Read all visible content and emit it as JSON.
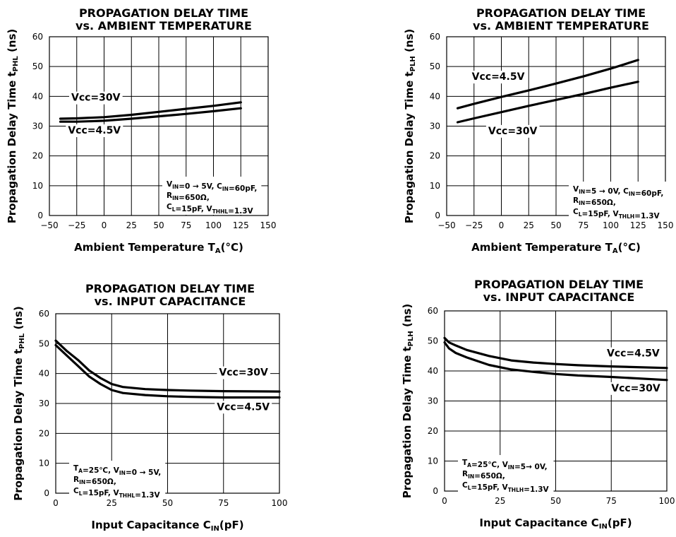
{
  "charts": [
    {
      "type": "line",
      "title": "PROPAGATION DELAY TIME",
      "subtitle": "vs. AMBIENT TEMPERATURE",
      "ylabel": {
        "main": "Propagation Delay Time t",
        "sub": "PHL",
        "unit": " (ns)"
      },
      "xlabel": {
        "main": "Ambient Temperature T",
        "sub": "A",
        "unit": "(°C)"
      },
      "xlim": [
        -50,
        150
      ],
      "ylim": [
        0,
        60
      ],
      "xticks": [
        "−50",
        "−25",
        "0",
        "25",
        "50",
        "75",
        "100",
        "125",
        "150"
      ],
      "yticks": [
        "0",
        "10",
        "20",
        "30",
        "40",
        "50",
        "60"
      ],
      "grid": true,
      "series": [
        {
          "name": "Vcc=30V",
          "x": [
            -40,
            -25,
            0,
            25,
            50,
            75,
            100,
            125
          ],
          "y": [
            32.5,
            32.6,
            33.0,
            33.8,
            34.8,
            35.8,
            36.8,
            38.0
          ]
        },
        {
          "name": "Vcc=4.5V",
          "x": [
            -40,
            -25,
            0,
            25,
            50,
            75,
            100,
            125
          ],
          "y": [
            31.5,
            31.5,
            31.8,
            32.5,
            33.3,
            34.1,
            35.0,
            36.0
          ]
        }
      ],
      "labels": [
        {
          "text": "Vcc=30V",
          "x": -30,
          "y": 38.5
        },
        {
          "text": "Vcc=4.5V",
          "x": -33,
          "y": 27.5
        }
      ],
      "conditions": [
        [
          {
            "t": "V"
          },
          {
            "t": "IN",
            "s": true
          },
          {
            "t": "=0 → 5V, C"
          },
          {
            "t": "IN",
            "s": true
          },
          {
            "t": "=60pF,"
          }
        ],
        [
          {
            "t": "R"
          },
          {
            "t": "IN",
            "s": true
          },
          {
            "t": "=650Ω,"
          }
        ],
        [
          {
            "t": "C"
          },
          {
            "t": "L",
            "s": true
          },
          {
            "t": "=15pF, V"
          },
          {
            "t": "THHL",
            "s": true
          },
          {
            "t": "=1.3V"
          }
        ]
      ]
    },
    {
      "type": "line",
      "title": "PROPAGATION DELAY TIME",
      "subtitle": "vs. AMBIENT TEMPERATURE",
      "ylabel": {
        "main": "Propagation Delay Time t",
        "sub": "PLH",
        "unit": " (ns)"
      },
      "xlabel": {
        "main": "Ambient Temperature T",
        "sub": "A",
        "unit": "(°C)"
      },
      "xlim": [
        -50,
        150
      ],
      "ylim": [
        0,
        60
      ],
      "xticks": [
        "−50",
        "−25",
        "0",
        "25",
        "50",
        "75",
        "100",
        "125",
        "150"
      ],
      "yticks": [
        "0",
        "10",
        "20",
        "30",
        "40",
        "50",
        "60"
      ],
      "grid": true,
      "series": [
        {
          "name": "Vcc=4.5V",
          "x": [
            -40,
            -25,
            0,
            25,
            50,
            75,
            100,
            125
          ],
          "y": [
            36.0,
            37.5,
            39.8,
            42.0,
            44.3,
            46.7,
            49.3,
            52.2
          ]
        },
        {
          "name": "Vcc=30V",
          "x": [
            -40,
            -25,
            0,
            25,
            50,
            75,
            100,
            125
          ],
          "y": [
            31.3,
            32.6,
            34.7,
            36.8,
            38.8,
            40.8,
            42.9,
            44.9
          ]
        }
      ],
      "labels": [
        {
          "text": "Vcc=4.5V",
          "x": -27,
          "y": 45.5
        },
        {
          "text": "Vcc=30V",
          "x": -12,
          "y": 27.3
        }
      ],
      "conditions": [
        [
          {
            "t": "V"
          },
          {
            "t": "IN",
            "s": true
          },
          {
            "t": "=5 → 0V, C"
          },
          {
            "t": "IN",
            "s": true
          },
          {
            "t": "=60pF,"
          }
        ],
        [
          {
            "t": "R"
          },
          {
            "t": "IN",
            "s": true
          },
          {
            "t": "=650Ω,"
          }
        ],
        [
          {
            "t": "C"
          },
          {
            "t": "L",
            "s": true
          },
          {
            "t": "=15pF, V"
          },
          {
            "t": "THLH",
            "s": true
          },
          {
            "t": "=1.3V"
          }
        ]
      ]
    },
    {
      "type": "line",
      "title": "PROPAGATION DELAY TIME",
      "subtitle": "vs. INPUT CAPACITANCE",
      "ylabel": {
        "main": "Propagation Delay Time t",
        "sub": "PHL",
        "unit": " (ns)"
      },
      "xlabel": {
        "main": "Input Capacitance C",
        "sub": "IN",
        "unit": "(pF)"
      },
      "xlim": [
        0,
        100
      ],
      "ylim": [
        0,
        60
      ],
      "xticks": [
        "0",
        "25",
        "50",
        "75",
        "100"
      ],
      "yticks": [
        "0",
        "10",
        "20",
        "30",
        "40",
        "50",
        "60"
      ],
      "grid": true,
      "series": [
        {
          "name": "Vcc=30V",
          "x": [
            0,
            5,
            10,
            15,
            20,
            25,
            30,
            40,
            50,
            60,
            75,
            100
          ],
          "y": [
            51.0,
            47.5,
            44.5,
            41.0,
            38.5,
            36.5,
            35.5,
            34.8,
            34.5,
            34.3,
            34.1,
            34.0
          ]
        },
        {
          "name": "Vcc=4.5V",
          "x": [
            0,
            5,
            10,
            15,
            20,
            25,
            30,
            40,
            50,
            60,
            75,
            100
          ],
          "y": [
            49.5,
            46.0,
            42.5,
            39.0,
            36.5,
            34.5,
            33.5,
            32.8,
            32.4,
            32.2,
            32.0,
            32.0
          ]
        }
      ],
      "labels": [
        {
          "text": "Vcc=30V",
          "x": 73,
          "y": 39.3
        },
        {
          "text": "Vcc=4.5V",
          "x": 72,
          "y": 27.8
        }
      ],
      "conditions": [
        [
          {
            "t": "T"
          },
          {
            "t": "A",
            "s": true
          },
          {
            "t": "=25℃, V"
          },
          {
            "t": "IN",
            "s": true
          },
          {
            "t": "=0 → 5V,"
          }
        ],
        [
          {
            "t": "R"
          },
          {
            "t": "IN",
            "s": true
          },
          {
            "t": "=650Ω,"
          }
        ],
        [
          {
            "t": "C"
          },
          {
            "t": "L",
            "s": true
          },
          {
            "t": "=15pF, V"
          },
          {
            "t": "THHL",
            "s": true
          },
          {
            "t": "=1.3V"
          }
        ]
      ]
    },
    {
      "type": "line",
      "title": "PROPAGATION DELAY TIME",
      "subtitle": "vs. INPUT CAPACITANCE",
      "ylabel": {
        "main": "Propagation Delay Time t",
        "sub": "PLH",
        "unit": " (ns)"
      },
      "xlabel": {
        "main": "Input Capacitance C",
        "sub": "IN",
        "unit": "(pF)"
      },
      "xlim": [
        0,
        100
      ],
      "ylim": [
        0,
        60
      ],
      "xticks": [
        "0",
        "25",
        "50",
        "75",
        "100"
      ],
      "yticks": [
        "0",
        "10",
        "20",
        "30",
        "40",
        "50",
        "60"
      ],
      "grid": true,
      "series": [
        {
          "name": "Vcc=4.5V",
          "x": [
            0,
            2,
            5,
            10,
            20,
            30,
            40,
            50,
            60,
            75,
            100
          ],
          "y": [
            51.0,
            49.5,
            48.5,
            47.0,
            45.0,
            43.5,
            42.8,
            42.3,
            41.9,
            41.5,
            41.0
          ]
        },
        {
          "name": "Vcc=30V",
          "x": [
            0,
            2,
            5,
            10,
            20,
            30,
            40,
            50,
            60,
            75,
            100
          ],
          "y": [
            49.5,
            47.5,
            46.0,
            44.5,
            42.0,
            40.5,
            39.7,
            39.0,
            38.5,
            38.0,
            37.0
          ]
        }
      ],
      "labels": [
        {
          "text": "Vcc=4.5V",
          "x": 73,
          "y": 44.8
        },
        {
          "text": "Vcc=30V",
          "x": 75,
          "y": 33.2
        }
      ],
      "conditions": [
        [
          {
            "t": "T"
          },
          {
            "t": "A",
            "s": true
          },
          {
            "t": "=25℃, V"
          },
          {
            "t": "IN",
            "s": true
          },
          {
            "t": "=5→ 0V,"
          }
        ],
        [
          {
            "t": "R"
          },
          {
            "t": "IN",
            "s": true
          },
          {
            "t": "=650Ω,"
          }
        ],
        [
          {
            "t": "C"
          },
          {
            "t": "L",
            "s": true
          },
          {
            "t": "=15pF, V"
          },
          {
            "t": "THLH",
            "s": true
          },
          {
            "t": "=1.3V"
          }
        ]
      ]
    }
  ]
}
